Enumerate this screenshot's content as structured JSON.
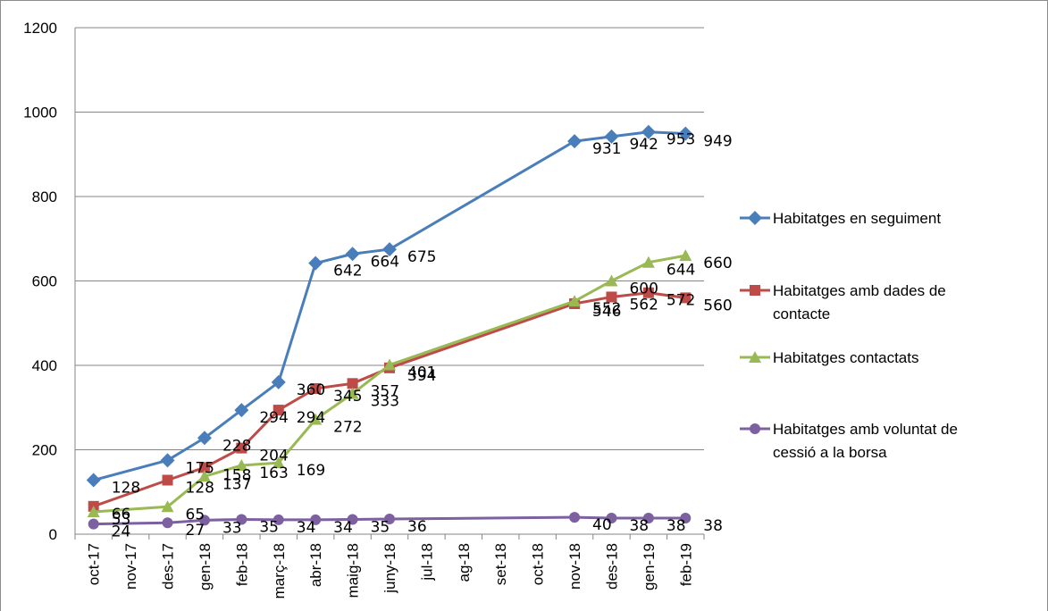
{
  "chart_data": {
    "type": "line",
    "categories": [
      "oct-17",
      "nov-17",
      "des-17",
      "gen-18",
      "feb-18",
      "març-18",
      "abr-18",
      "maig-18",
      "juny-18",
      "jul-18",
      "ag-18",
      "set-18",
      "oct-18",
      "nov-18",
      "des-18",
      "gen-19",
      "feb-19"
    ],
    "ylim": [
      0,
      1200
    ],
    "yticks": [
      0,
      200,
      400,
      600,
      800,
      1000,
      1200
    ],
    "grid": true,
    "legend_position": "right",
    "series": [
      {
        "name": "Habitatges en seguiment",
        "color": "#4a7ebb",
        "marker": "diamond",
        "points": [
          [
            0,
            128
          ],
          [
            2,
            175
          ],
          [
            3,
            228
          ],
          [
            4,
            294
          ],
          [
            5,
            360
          ],
          [
            6,
            642
          ],
          [
            7,
            664
          ],
          [
            8,
            675
          ],
          [
            13,
            931
          ],
          [
            14,
            942
          ],
          [
            15,
            953
          ],
          [
            16,
            949
          ]
        ]
      },
      {
        "name": "Habitatges amb dades de contacte",
        "color": "#be4b48",
        "marker": "square",
        "points": [
          [
            0,
            66
          ],
          [
            2,
            128
          ],
          [
            3,
            158
          ],
          [
            4,
            204
          ],
          [
            5,
            294
          ],
          [
            6,
            345
          ],
          [
            7,
            357
          ],
          [
            8,
            394
          ],
          [
            13,
            546
          ],
          [
            14,
            562
          ],
          [
            15,
            572
          ],
          [
            16,
            560
          ]
        ]
      },
      {
        "name": "Habitatges contactats",
        "color": "#98b954",
        "marker": "triangle",
        "points": [
          [
            0,
            53
          ],
          [
            2,
            65
          ],
          [
            3,
            137
          ],
          [
            4,
            163
          ],
          [
            5,
            169
          ],
          [
            6,
            272
          ],
          [
            7,
            333
          ],
          [
            8,
            401
          ],
          [
            13,
            552
          ],
          [
            14,
            600
          ],
          [
            15,
            644
          ],
          [
            16,
            660
          ]
        ]
      },
      {
        "name": "Habitatges amb voluntat de cessió a la borsa",
        "color": "#7d60a0",
        "marker": "circle",
        "points": [
          [
            0,
            24
          ],
          [
            2,
            27
          ],
          [
            3,
            33
          ],
          [
            4,
            35
          ],
          [
            5,
            34
          ],
          [
            6,
            34
          ],
          [
            7,
            35
          ],
          [
            8,
            36
          ],
          [
            13,
            40
          ],
          [
            14,
            38
          ],
          [
            15,
            38
          ],
          [
            16,
            38
          ]
        ]
      }
    ],
    "data_labels": [
      {
        "text": "128",
        "s": 0,
        "i": 0
      },
      {
        "text": "175",
        "s": 0,
        "i": 1
      },
      {
        "text": "228",
        "s": 0,
        "i": 2
      },
      {
        "text": "294",
        "s": 0,
        "i": 3
      },
      {
        "text": "360",
        "s": 0,
        "i": 4
      },
      {
        "text": "642",
        "s": 0,
        "i": 5
      },
      {
        "text": "664",
        "s": 0,
        "i": 6
      },
      {
        "text": "675",
        "s": 0,
        "i": 7
      },
      {
        "text": "931",
        "s": 0,
        "i": 8
      },
      {
        "text": "942",
        "s": 0,
        "i": 9
      },
      {
        "text": "953",
        "s": 0,
        "i": 10
      },
      {
        "text": "949",
        "s": 0,
        "i": 11
      },
      {
        "text": "66",
        "s": 1,
        "i": 0
      },
      {
        "text": "128",
        "s": 1,
        "i": 1
      },
      {
        "text": "158",
        "s": 1,
        "i": 2
      },
      {
        "text": "204",
        "s": 1,
        "i": 3
      },
      {
        "text": "294",
        "s": 1,
        "i": 4
      },
      {
        "text": "345",
        "s": 1,
        "i": 5
      },
      {
        "text": "357",
        "s": 1,
        "i": 6
      },
      {
        "text": "394",
        "s": 1,
        "i": 7
      },
      {
        "text": "546",
        "s": 1,
        "i": 8
      },
      {
        "text": "562",
        "s": 1,
        "i": 9
      },
      {
        "text": "572",
        "s": 1,
        "i": 10
      },
      {
        "text": "560",
        "s": 1,
        "i": 11
      },
      {
        "text": "53",
        "s": 2,
        "i": 0
      },
      {
        "text": "65",
        "s": 2,
        "i": 1
      },
      {
        "text": "137",
        "s": 2,
        "i": 2
      },
      {
        "text": "163",
        "s": 2,
        "i": 3
      },
      {
        "text": "169",
        "s": 2,
        "i": 4
      },
      {
        "text": "272",
        "s": 2,
        "i": 5
      },
      {
        "text": "333",
        "s": 2,
        "i": 6
      },
      {
        "text": "401",
        "s": 2,
        "i": 7
      },
      {
        "text": "552",
        "s": 2,
        "i": 8
      },
      {
        "text": "600",
        "s": 2,
        "i": 9
      },
      {
        "text": "644",
        "s": 2,
        "i": 10
      },
      {
        "text": "660",
        "s": 2,
        "i": 11
      },
      {
        "text": "24",
        "s": 3,
        "i": 0
      },
      {
        "text": "27",
        "s": 3,
        "i": 1
      },
      {
        "text": "33",
        "s": 3,
        "i": 2
      },
      {
        "text": "35",
        "s": 3,
        "i": 3
      },
      {
        "text": "34",
        "s": 3,
        "i": 4
      },
      {
        "text": "34",
        "s": 3,
        "i": 5
      },
      {
        "text": "35",
        "s": 3,
        "i": 6
      },
      {
        "text": "36",
        "s": 3,
        "i": 7
      },
      {
        "text": "40",
        "s": 3,
        "i": 8
      },
      {
        "text": "38",
        "s": 3,
        "i": 9
      },
      {
        "text": "38",
        "s": 3,
        "i": 10
      },
      {
        "text": "38",
        "s": 3,
        "i": 11
      }
    ],
    "legend": [
      {
        "lines": [
          "Habitatges en seguiment"
        ]
      },
      {
        "lines": [
          "Habitatges amb dades de",
          "contacte"
        ]
      },
      {
        "lines": [
          "Habitatges contactats"
        ]
      },
      {
        "lines": [
          "Habitatges amb voluntat de",
          "cessió a la borsa"
        ]
      }
    ]
  }
}
